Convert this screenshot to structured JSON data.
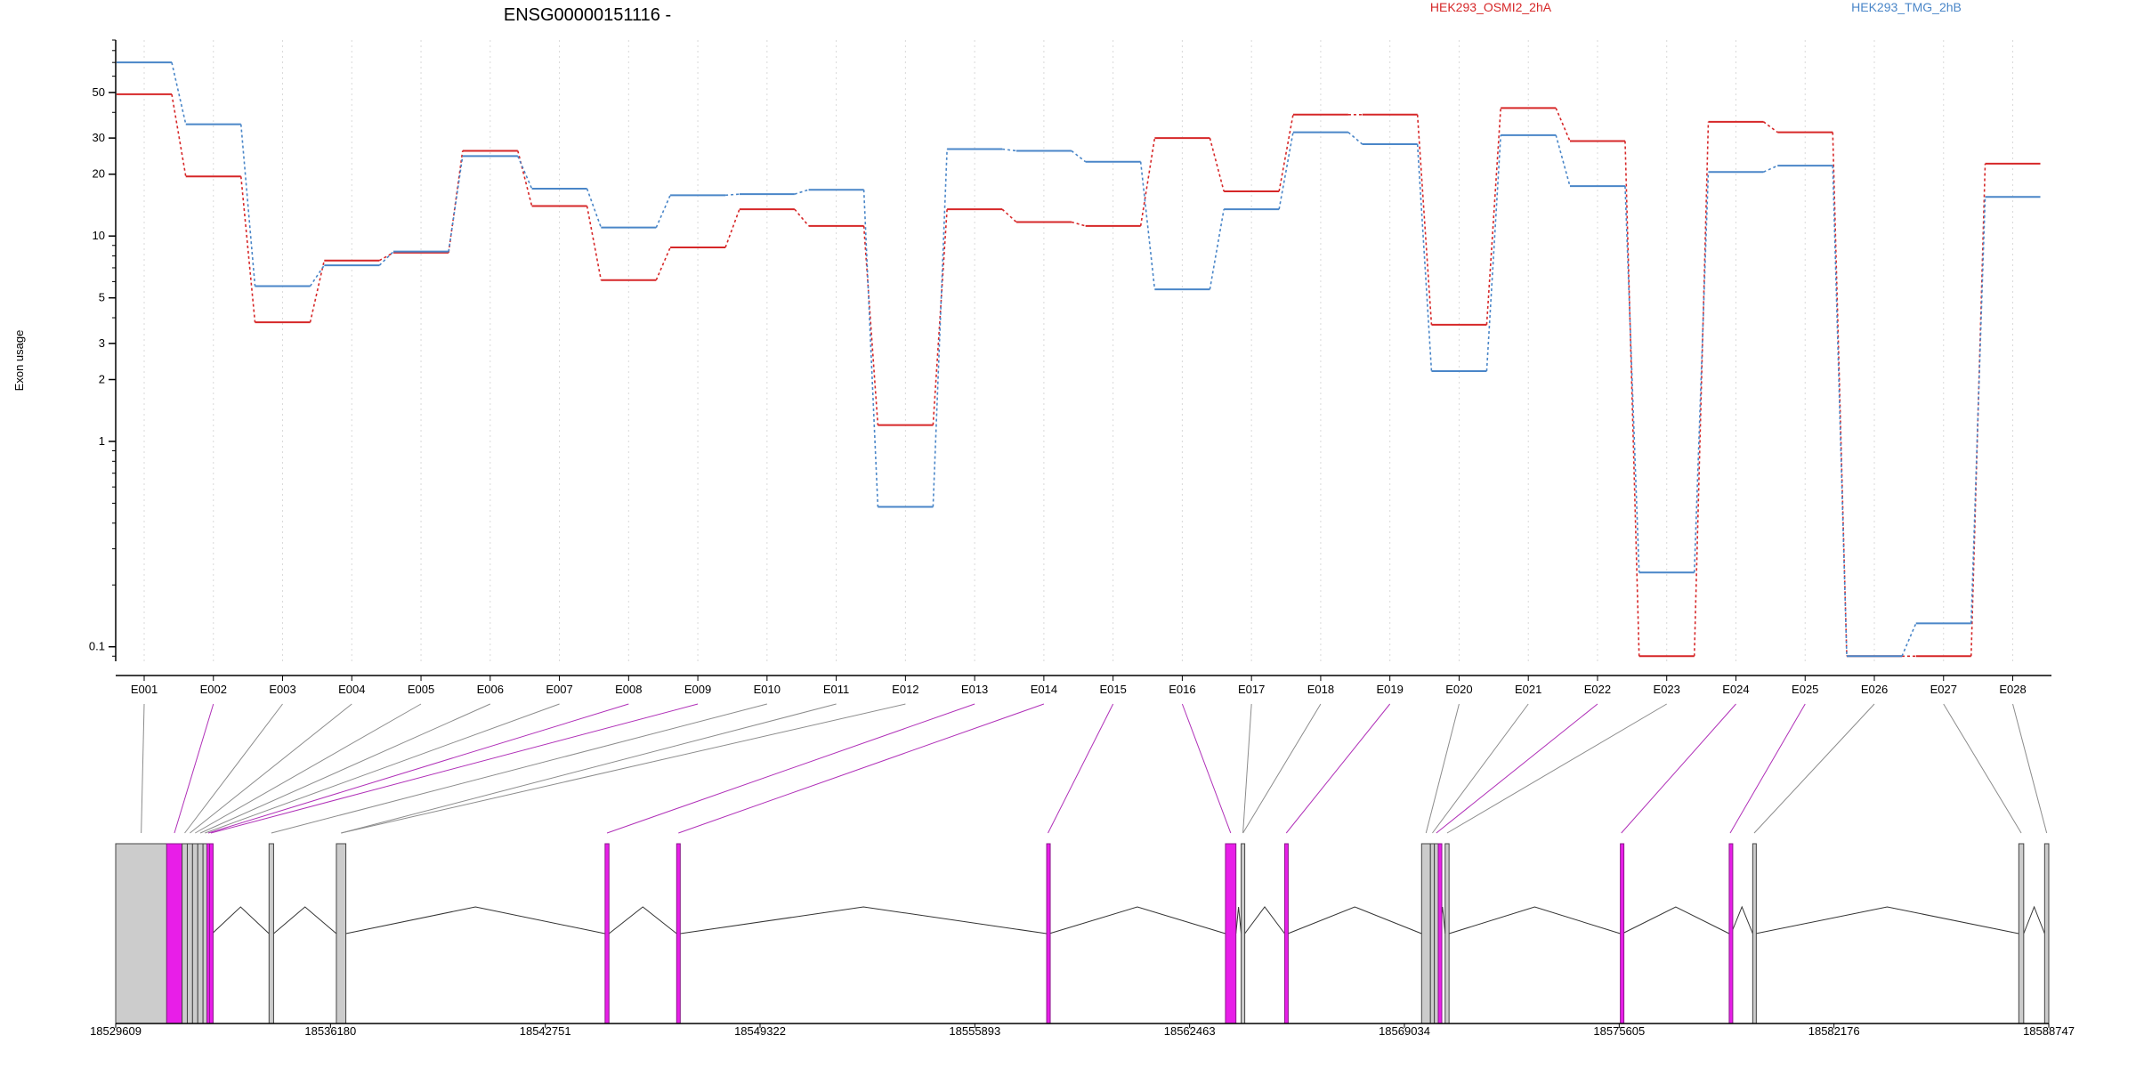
{
  "chart_data": {
    "type": "line",
    "title": "ENSG00000151116 -",
    "ylabel": "Exon usage",
    "xlabel": "",
    "y_scale": "log",
    "ylim": [
      0.085,
      90
    ],
    "y_ticks": [
      0.1,
      1,
      2,
      3,
      5,
      10,
      20,
      30,
      50
    ],
    "y_tick_labels": [
      "0.1",
      "1",
      "2",
      "3",
      "5",
      "10",
      "20",
      "30",
      "50"
    ],
    "grid": "vertical dotted per exon",
    "legend_placement": "top",
    "categories": [
      "E001",
      "E002",
      "E003",
      "E004",
      "E005",
      "E006",
      "E007",
      "E008",
      "E009",
      "E010",
      "E011",
      "E012",
      "E013",
      "E014",
      "E015",
      "E016",
      "E017",
      "E018",
      "E019",
      "E020",
      "E021",
      "E022",
      "E023",
      "E024",
      "E025",
      "E026",
      "E027",
      "E028"
    ],
    "series": [
      {
        "name": "HEK293_OSMI2_2hA",
        "color": "#d62728",
        "values": [
          49,
          19.5,
          3.8,
          7.6,
          8.3,
          26,
          14,
          6.1,
          8.8,
          13.5,
          11.2,
          1.2,
          13.5,
          11.7,
          11.2,
          30,
          16.5,
          39,
          39,
          3.7,
          42,
          29,
          0.09,
          36,
          32,
          0.09,
          0.09,
          22.5
        ]
      },
      {
        "name": "HEK293_TMG_2hB",
        "color": "#4a86c8",
        "values": [
          70,
          35,
          5.7,
          7.2,
          8.4,
          24.5,
          17,
          11,
          15.8,
          16,
          16.8,
          0.48,
          26.5,
          26,
          23,
          5.5,
          13.5,
          32,
          28,
          2.2,
          31,
          17.5,
          0.23,
          20.5,
          22,
          0.09,
          0.13,
          15.5
        ]
      }
    ],
    "gene_model": {
      "coordinate_ticks": [
        "18529609",
        "18536180",
        "18542751",
        "18549322",
        "18555893",
        "18562463",
        "18569034",
        "18575605",
        "18582176",
        "18588747"
      ],
      "coord_range": [
        18529609,
        18588747
      ],
      "highlight_color": "#e81ee8",
      "exon_color": "#cccccc",
      "exons": [
        {
          "id": "E001",
          "start": 18529609,
          "end": 18531170,
          "highlight": false
        },
        {
          "id": "E002",
          "start": 18531170,
          "end": 18531640,
          "highlight": true
        },
        {
          "id": "E003",
          "start": 18531640,
          "end": 18531800,
          "highlight": false
        },
        {
          "id": "E004",
          "start": 18531800,
          "end": 18531960,
          "highlight": false
        },
        {
          "id": "E005",
          "start": 18531960,
          "end": 18532120,
          "highlight": false
        },
        {
          "id": "E006",
          "start": 18532120,
          "end": 18532280,
          "highlight": false
        },
        {
          "id": "E007",
          "start": 18532280,
          "end": 18532400,
          "highlight": false
        },
        {
          "id": "E008",
          "start": 18532400,
          "end": 18532480,
          "highlight": true
        },
        {
          "id": "E009",
          "start": 18532480,
          "end": 18532560,
          "highlight": true
        },
        {
          "id": "E010",
          "start": 18534300,
          "end": 18534440,
          "highlight": false
        },
        {
          "id": "E011",
          "start": 18536360,
          "end": 18536650,
          "highlight": false
        },
        {
          "id": "E012",
          "start": 18544580,
          "end": 18544700,
          "highlight": true
        },
        {
          "id": "E013",
          "start": 18546770,
          "end": 18546880,
          "highlight": true
        },
        {
          "id": "E014",
          "start": 18558090,
          "end": 18558170,
          "highlight": true
        },
        {
          "id": "E015",
          "start": 18563560,
          "end": 18563880,
          "highlight": true
        },
        {
          "id": "E016",
          "start": 18564040,
          "end": 18564150,
          "highlight": false
        },
        {
          "id": "E017",
          "start": 18565370,
          "end": 18565470,
          "highlight": true
        },
        {
          "id": "E018",
          "start": 18569560,
          "end": 18569830,
          "highlight": false
        },
        {
          "id": "E019",
          "start": 18569830,
          "end": 18569950,
          "highlight": false
        },
        {
          "id": "E020",
          "start": 18569950,
          "end": 18570070,
          "highlight": false
        },
        {
          "id": "E021",
          "start": 18570070,
          "end": 18570120,
          "highlight": true
        },
        {
          "id": "E022",
          "start": 18570280,
          "end": 18570400,
          "highlight": false
        },
        {
          "id": "E023",
          "start": 18575640,
          "end": 18575700,
          "highlight": true
        },
        {
          "id": "E024",
          "start": 18578970,
          "end": 18579030,
          "highlight": true
        },
        {
          "id": "E025",
          "start": 18579690,
          "end": 18579780,
          "highlight": false
        },
        {
          "id": "E026",
          "start": 18587830,
          "end": 18587980,
          "highlight": false
        },
        {
          "id": "E027",
          "start": 18588620,
          "end": 18588747,
          "highlight": false
        }
      ],
      "label_links": [
        {
          "label": "E001",
          "exon": 0,
          "highlight": false
        },
        {
          "label": "E002",
          "exon": 1,
          "highlight": true
        },
        {
          "label": "E003",
          "exon": 2,
          "highlight": false
        },
        {
          "label": "E004",
          "exon": 3,
          "highlight": false
        },
        {
          "label": "E005",
          "exon": 4,
          "highlight": false
        },
        {
          "label": "E006",
          "exon": 5,
          "highlight": false
        },
        {
          "label": "E007",
          "exon": 6,
          "highlight": false
        },
        {
          "label": "E008",
          "exon": 7,
          "highlight": true
        },
        {
          "label": "E009",
          "exon": 8,
          "highlight": true
        },
        {
          "label": "E010",
          "exon": 9,
          "highlight": false
        },
        {
          "label": "E011",
          "exon": 10,
          "highlight": false
        },
        {
          "label": "E012",
          "exon": 10,
          "highlight": false
        },
        {
          "label": "E013",
          "exon": 11,
          "highlight": true
        },
        {
          "label": "E014",
          "exon": 12,
          "highlight": true
        },
        {
          "label": "E015",
          "exon": 13,
          "highlight": true
        },
        {
          "label": "E016",
          "exon": 14,
          "highlight": true
        },
        {
          "label": "E017",
          "exon": 15,
          "highlight": false
        },
        {
          "label": "E018",
          "exon": 15,
          "highlight": false
        },
        {
          "label": "E019",
          "exon": 16,
          "highlight": true
        },
        {
          "label": "E020",
          "exon": 17,
          "highlight": false
        },
        {
          "label": "E021",
          "exon": 18,
          "highlight": false
        },
        {
          "label": "E022",
          "exon": 19,
          "highlight": true
        },
        {
          "label": "E023",
          "exon": 21,
          "highlight": false
        },
        {
          "label": "E024",
          "exon": 22,
          "highlight": true
        },
        {
          "label": "E025",
          "exon": 23,
          "highlight": true
        },
        {
          "label": "E026",
          "exon": 24,
          "highlight": false
        },
        {
          "label": "E027",
          "exon": 25,
          "highlight": false
        },
        {
          "label": "E028",
          "exon": 26,
          "highlight": false
        }
      ]
    }
  }
}
